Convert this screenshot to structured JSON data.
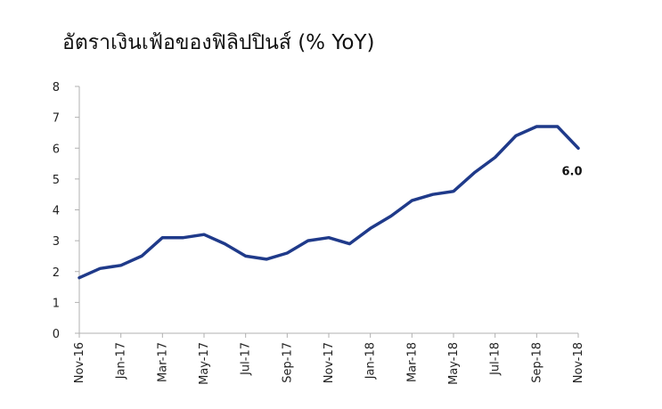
{
  "chart_data": {
    "type": "line",
    "title": "อัตราเงินเฟ้อของฟิลิปปินส์ (% YoY)",
    "xlabel": "",
    "ylabel": "",
    "ylim": [
      0,
      8
    ],
    "yticks": [
      0,
      1,
      2,
      3,
      4,
      5,
      6,
      7,
      8
    ],
    "grid": false,
    "legend": "none",
    "x": [
      "Nov-16",
      "Dec-16",
      "Jan-17",
      "Feb-17",
      "Mar-17",
      "Apr-17",
      "May-17",
      "Jun-17",
      "Jul-17",
      "Aug-17",
      "Sep-17",
      "Oct-17",
      "Nov-17",
      "Dec-17",
      "Jan-18",
      "Feb-18",
      "Mar-18",
      "Apr-18",
      "May-18",
      "Jun-18",
      "Jul-18",
      "Aug-18",
      "Sep-18",
      "Oct-18",
      "Nov-18"
    ],
    "xtick_labels": [
      "Nov-16",
      "Jan-17",
      "Mar-17",
      "May-17",
      "Jul-17",
      "Sep-17",
      "Nov-17",
      "Jan-18",
      "Mar-18",
      "May-18",
      "Jul-18",
      "Sep-18",
      "Nov-18"
    ],
    "series": [
      {
        "color": "#1f3a8a",
        "values": [
          1.8,
          2.1,
          2.2,
          2.5,
          3.1,
          3.1,
          3.2,
          2.9,
          2.5,
          2.4,
          2.6,
          3.0,
          3.1,
          2.9,
          3.4,
          3.8,
          4.3,
          4.5,
          4.6,
          5.2,
          5.7,
          6.4,
          6.7,
          6.7,
          6.0
        ]
      }
    ],
    "annotations": [
      {
        "text": "6.0",
        "x": "Nov-18",
        "y": 6.0
      }
    ]
  }
}
